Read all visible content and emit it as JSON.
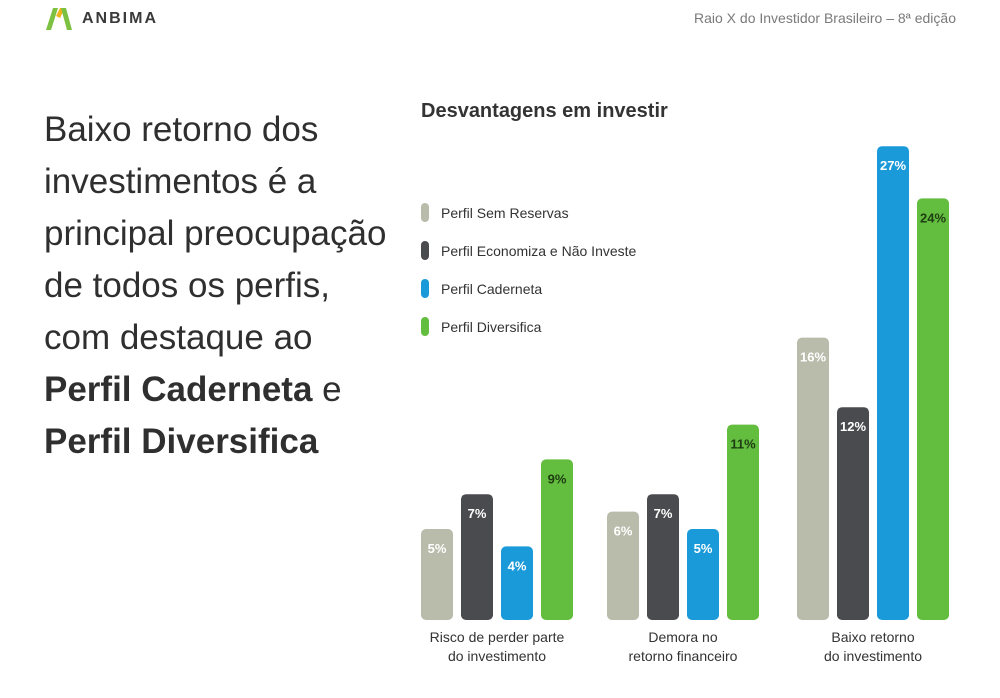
{
  "header": {
    "logo_text": "ANBIMA",
    "edition": "Raio X do Investidor Brasileiro – 8ª edição"
  },
  "headline": {
    "line1": "Baixo retorno dos",
    "line2": "investimentos é a",
    "line3": "principal preocupação",
    "line4": "de todos os perfis,",
    "line5": "com destaque ao",
    "line6_bold": "Perfil Caderneta",
    "line6_rest": " e",
    "line7_bold": "Perfil Diversifica"
  },
  "colors": {
    "sem_reservas": "#b9bcab",
    "economiza": "#4a4b4e",
    "caderneta": "#1a9ad9",
    "diversifica": "#63bd3f",
    "logo_green": "#7cc142",
    "logo_yellow": "#f0b31c"
  },
  "chart_data": {
    "type": "bar",
    "title": "Desvantagens em investir",
    "categories": [
      [
        "Risco de perder parte",
        "do investimento"
      ],
      [
        "Demora no",
        "retorno financeiro"
      ],
      [
        "Baixo retorno",
        "do investimento"
      ]
    ],
    "series": [
      {
        "name": "Perfil Sem Reservas",
        "color": "#b9bcab",
        "values": [
          5,
          6,
          16
        ]
      },
      {
        "name": "Perfil Economiza e Não Investe",
        "color": "#4a4b4e",
        "values": [
          7,
          7,
          12
        ]
      },
      {
        "name": "Perfil Caderneta",
        "color": "#1a9ad9",
        "values": [
          4,
          5,
          27
        ]
      },
      {
        "name": "Perfil Diversifica",
        "color": "#63bd3f",
        "values": [
          9,
          11,
          24
        ]
      }
    ],
    "value_suffix": "%",
    "legend_position": "top-left",
    "grid": false
  }
}
